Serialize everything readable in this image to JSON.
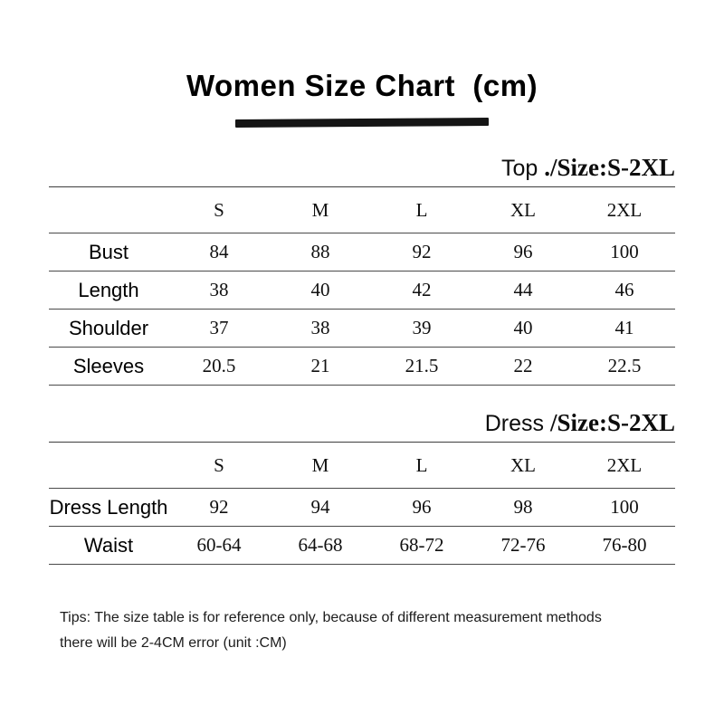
{
  "title": "Women Size Chart  (cm)",
  "chart_data": [
    {
      "type": "table",
      "heading_prefix": "Top",
      "heading_suffix": "./Size:S-2XL",
      "columns": [
        "S",
        "M",
        "L",
        "XL",
        "2XL"
      ],
      "rows": [
        {
          "label": "Bust",
          "values": [
            "84",
            "88",
            "92",
            "96",
            "100"
          ]
        },
        {
          "label": "Length",
          "values": [
            "38",
            "40",
            "42",
            "44",
            "46"
          ]
        },
        {
          "label": "Shoulder",
          "values": [
            "37",
            "38",
            "39",
            "40",
            "41"
          ]
        },
        {
          "label": "Sleeves",
          "values": [
            "20.5",
            "21",
            "21.5",
            "22",
            "22.5"
          ]
        }
      ]
    },
    {
      "type": "table",
      "heading_prefix": "Dress",
      "heading_suffix": "/Size:S-2XL",
      "columns": [
        "S",
        "M",
        "L",
        "XL",
        "2XL"
      ],
      "rows": [
        {
          "label": "Dress Length",
          "values": [
            "92",
            "94",
            "96",
            "98",
            "100"
          ]
        },
        {
          "label": "Waist",
          "values": [
            "60-64",
            "64-68",
            "68-72",
            "72-76",
            "76-80"
          ]
        }
      ]
    }
  ],
  "tips": {
    "line1": "Tips: The size table is for reference only, because of different measurement methods",
    "line2": "there will be 2-4CM error (unit :CM)"
  }
}
